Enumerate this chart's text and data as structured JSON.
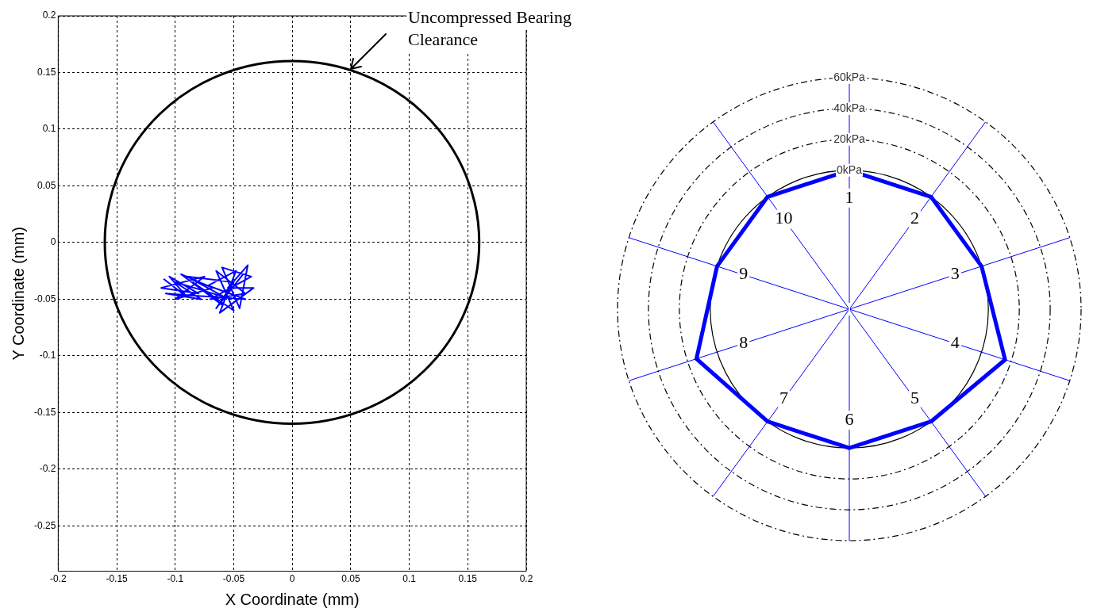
{
  "chart_data": [
    {
      "type": "line",
      "xlabel": "X Coordinate (mm)",
      "ylabel": "Y Coordinate (mm)",
      "xlim": [
        -0.2,
        0.2
      ],
      "xticks": [
        -0.2,
        -0.15,
        -0.1,
        -0.05,
        0,
        0.05,
        0.1,
        0.15,
        0.2
      ],
      "ylim": [
        -0.29,
        0.2
      ],
      "yticks": [
        -0.25,
        -0.2,
        -0.15,
        -0.1,
        -0.05,
        0,
        0.05,
        0.1,
        0.15,
        0.2
      ],
      "grid": true,
      "series": [
        {
          "color": "#0000ff",
          "x": [
            -0.11,
            -0.09,
            -0.105,
            -0.08,
            -0.112,
            -0.075,
            -0.1,
            -0.068,
            -0.095,
            -0.06,
            -0.085,
            -0.05,
            -0.065,
            -0.04,
            -0.07,
            -0.035,
            -0.06,
            -0.045,
            -0.038,
            -0.055,
            -0.033,
            -0.062,
            -0.048,
            -0.072,
            -0.04,
            -0.108,
            -0.078,
            -0.1,
            -0.058,
            -0.09,
            -0.05,
            -0.065,
            -0.042
          ],
          "values": [
            -0.032,
            -0.048,
            -0.03,
            -0.045,
            -0.04,
            -0.03,
            -0.05,
            -0.04,
            -0.028,
            -0.055,
            -0.035,
            -0.06,
            -0.025,
            -0.045,
            -0.05,
            -0.03,
            -0.022,
            -0.058,
            -0.02,
            -0.04,
            -0.04,
            -0.062,
            -0.025,
            -0.038,
            -0.05,
            -0.045,
            -0.05,
            -0.035,
            -0.048,
            -0.03,
            -0.035,
            -0.058,
            -0.028
          ]
        }
      ],
      "annotations": [
        "Uncompressed Bearing Clearance"
      ]
    },
    {
      "type": "radar",
      "categories": [
        "1",
        "2",
        "3",
        "4",
        "5",
        "6",
        "7",
        "8",
        "9",
        "10"
      ],
      "series": [
        {
          "color": "#0000ff",
          "values": [
            0,
            0,
            0,
            16,
            0,
            0,
            0,
            14,
            0,
            0
          ]
        }
      ],
      "ylim": [
        -90,
        60
      ],
      "yticks": [
        {
          "value": 0,
          "label": "0kPa"
        },
        {
          "value": 20,
          "label": "20kPa"
        },
        {
          "value": 40,
          "label": "40kPa"
        },
        {
          "value": 60,
          "label": "60kPa"
        }
      ],
      "grid": true
    }
  ]
}
